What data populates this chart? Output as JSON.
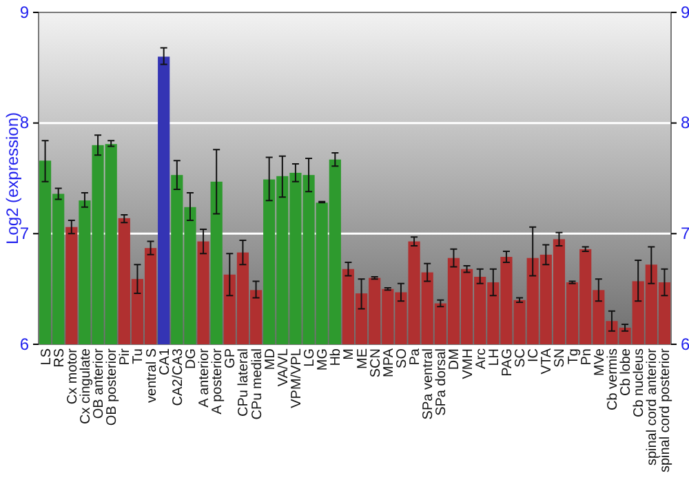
{
  "chart_data": {
    "type": "bar",
    "ylabel": "Log2 (expression)",
    "categories": [
      "LS",
      "RS",
      "Cx motor",
      "Cx cingulate",
      "OB anterior",
      "OB posterior",
      "Pir",
      "Tu",
      "ventral S",
      "CA1",
      "CA2/CA3",
      "DG",
      "A anterior",
      "A posterior",
      "GP",
      "CPu lateral",
      "CPu medial",
      "MD",
      "VA/VL",
      "VPM/VPL",
      "LG",
      "MG",
      "Hb",
      "M",
      "ME",
      "SCN",
      "MPA",
      "SO",
      "Pa",
      "SPa ventral",
      "SPa dorsal",
      "DM",
      "VMH",
      "Arc",
      "LH",
      "PAG",
      "SC",
      "IC",
      "VTA",
      "SN",
      "Tg",
      "Pn",
      "MVe",
      "Cb vermis",
      "Cb lobe",
      "Cb nucleus",
      "spinal cord anterior",
      "spinal cord posterior"
    ],
    "values": [
      7.66,
      7.36,
      7.06,
      7.3,
      7.8,
      7.81,
      7.14,
      6.59,
      6.87,
      8.6,
      7.53,
      7.24,
      6.93,
      7.47,
      6.63,
      6.83,
      6.49,
      7.49,
      7.52,
      7.55,
      7.53,
      7.28,
      7.67,
      6.68,
      6.46,
      6.6,
      6.5,
      6.47,
      6.93,
      6.65,
      6.37,
      6.78,
      6.68,
      6.61,
      6.56,
      6.79,
      6.4,
      6.78,
      6.81,
      6.95,
      6.56,
      6.86,
      6.49,
      6.21,
      6.15,
      6.57,
      6.72,
      6.56
    ],
    "errors": [
      [
        7.47,
        7.84
      ],
      [
        7.31,
        7.41
      ],
      [
        7.0,
        7.12
      ],
      [
        7.24,
        7.37
      ],
      [
        7.71,
        7.89
      ],
      [
        7.79,
        7.84
      ],
      [
        7.1,
        7.17
      ],
      [
        6.46,
        6.72
      ],
      [
        6.81,
        6.93
      ],
      [
        8.53,
        8.68
      ],
      [
        7.4,
        7.66
      ],
      [
        7.12,
        7.37
      ],
      [
        6.82,
        7.04
      ],
      [
        7.18,
        7.76
      ],
      [
        6.44,
        6.82
      ],
      [
        6.72,
        6.94
      ],
      [
        6.42,
        6.57
      ],
      [
        7.3,
        7.69
      ],
      [
        7.33,
        7.7
      ],
      [
        7.47,
        7.63
      ],
      [
        7.38,
        7.68
      ],
      [
        7.28,
        7.29
      ],
      [
        7.61,
        7.73
      ],
      [
        6.62,
        6.74
      ],
      [
        6.32,
        6.59
      ],
      [
        6.59,
        6.61
      ],
      [
        6.49,
        6.51
      ],
      [
        6.39,
        6.55
      ],
      [
        6.89,
        6.97
      ],
      [
        6.57,
        6.73
      ],
      [
        6.34,
        6.4
      ],
      [
        6.7,
        6.86
      ],
      [
        6.65,
        6.71
      ],
      [
        6.55,
        6.68
      ],
      [
        6.44,
        6.68
      ],
      [
        6.74,
        6.84
      ],
      [
        6.38,
        6.42
      ],
      [
        6.62,
        7.06
      ],
      [
        6.72,
        6.9
      ],
      [
        6.89,
        7.01
      ],
      [
        6.55,
        6.57
      ],
      [
        6.84,
        6.88
      ],
      [
        6.39,
        6.59
      ],
      [
        6.12,
        6.3
      ],
      [
        6.12,
        6.18
      ],
      [
        6.39,
        6.76
      ],
      [
        6.55,
        6.88
      ],
      [
        6.44,
        6.68
      ]
    ],
    "colors": [
      "#2e9a2e",
      "#2e9a2e",
      "#b03030",
      "#2e9a2e",
      "#2e9a2e",
      "#2e9a2e",
      "#b03030",
      "#b03030",
      "#b03030",
      "#3434b4",
      "#2e9a2e",
      "#2e9a2e",
      "#b03030",
      "#2e9a2e",
      "#b03030",
      "#b03030",
      "#b03030",
      "#2e9a2e",
      "#2e9a2e",
      "#2e9a2e",
      "#2e9a2e",
      "#2e9a2e",
      "#2e9a2e",
      "#b03030",
      "#b03030",
      "#b03030",
      "#b03030",
      "#b03030",
      "#b03030",
      "#b03030",
      "#b03030",
      "#b03030",
      "#b03030",
      "#b03030",
      "#b03030",
      "#b03030",
      "#b03030",
      "#b03030",
      "#b03030",
      "#b03030",
      "#b03030",
      "#b03030",
      "#b03030",
      "#b03030",
      "#b03030",
      "#b03030",
      "#b03030",
      "#b03030"
    ],
    "ylim": [
      6,
      9
    ],
    "yticks": [
      6,
      7,
      8,
      9
    ],
    "y2lim": [
      6,
      9
    ],
    "y2ticks": [
      6,
      7,
      8,
      9
    ],
    "grid": "y"
  }
}
